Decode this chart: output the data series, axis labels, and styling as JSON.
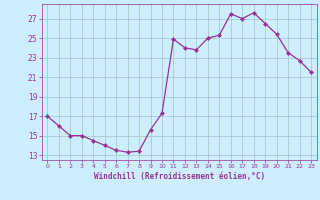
{
  "x": [
    0,
    1,
    2,
    3,
    4,
    5,
    6,
    7,
    8,
    9,
    10,
    11,
    12,
    13,
    14,
    15,
    16,
    17,
    18,
    19,
    20,
    21,
    22,
    23
  ],
  "y": [
    17.0,
    16.0,
    15.0,
    15.0,
    14.5,
    14.0,
    13.5,
    13.3,
    13.4,
    15.6,
    17.3,
    24.9,
    24.0,
    23.8,
    25.0,
    25.3,
    27.5,
    27.0,
    27.6,
    26.5,
    25.4,
    23.5,
    22.7,
    21.5
  ],
  "line_color": "#993399",
  "marker": "D",
  "marker_size": 2,
  "bg_color": "#cceeff",
  "grid_color": "#aacccc",
  "xlabel": "Windchill (Refroidissement éolien,°C)",
  "xlabel_color": "#993399",
  "tick_color": "#993399",
  "ylim": [
    12.5,
    28.5
  ],
  "xlim": [
    -0.5,
    23.5
  ],
  "yticks": [
    13,
    15,
    17,
    19,
    21,
    23,
    25,
    27
  ],
  "xticks": [
    0,
    1,
    2,
    3,
    4,
    5,
    6,
    7,
    8,
    9,
    10,
    11,
    12,
    13,
    14,
    15,
    16,
    17,
    18,
    19,
    20,
    21,
    22,
    23
  ]
}
